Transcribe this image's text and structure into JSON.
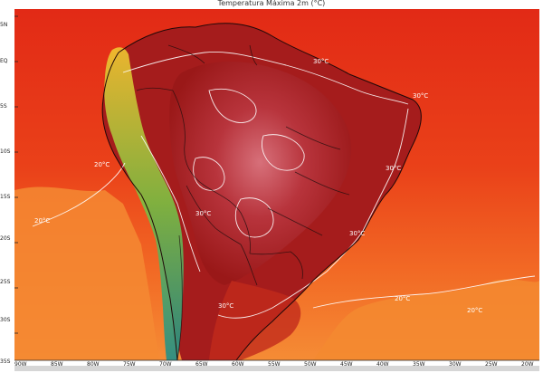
{
  "title": "Temperatura Máxima 2m (°C)",
  "latitude_labels": [
    "5N",
    "EQ",
    "5S",
    "10S",
    "15S",
    "20S",
    "25S",
    "30S",
    "35S"
  ],
  "longitude_labels": [
    "90W",
    "85W",
    "80W",
    "75W",
    "70W",
    "65W",
    "60W",
    "55W",
    "50W",
    "45W",
    "40W",
    "35W",
    "30W",
    "25W",
    "20W"
  ],
  "isotherm_labels": [
    {
      "text": "30°C",
      "key": "ne_coast"
    },
    {
      "text": "30°C",
      "key": "north"
    },
    {
      "text": "30°C",
      "key": "east"
    },
    {
      "text": "30°C",
      "key": "southeast"
    },
    {
      "text": "30°C",
      "key": "south"
    },
    {
      "text": "30°C",
      "key": "andes"
    },
    {
      "text": "20°C",
      "key": "pacific_north"
    },
    {
      "text": "20°C",
      "key": "pacific_south"
    },
    {
      "text": "20°C",
      "key": "atlantic_south"
    },
    {
      "text": "20°C",
      "key": "atlantic_far"
    }
  ],
  "colors": {
    "ocean_warm": "#e8331c",
    "ocean_cool": "#f47a2a",
    "land_hot": "#a81d1d",
    "land_very_hot": "#c94a55",
    "andes": "#2e9a3a",
    "isotherm": "#ffffff"
  }
}
